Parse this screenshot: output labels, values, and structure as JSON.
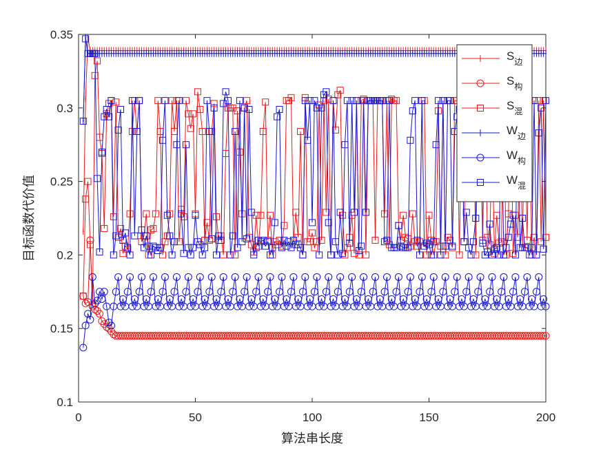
{
  "chart_data": {
    "type": "line",
    "title": "",
    "xlabel": "算法串长度",
    "ylabel": "目标函数代价值",
    "xlim": [
      0,
      200
    ],
    "ylim": [
      0.1,
      0.35
    ],
    "x_ticks": [
      0,
      50,
      100,
      150,
      200
    ],
    "y_ticks": [
      0.1,
      0.15,
      0.2,
      0.25,
      0.3,
      0.35
    ],
    "x_tick_labels": [
      "0",
      "50",
      "100",
      "150",
      "200"
    ],
    "y_tick_labels": [
      "0.1",
      "0.15",
      "0.2",
      "0.25",
      "0.3",
      "0.35"
    ],
    "grid": false,
    "legend_position": "top-right",
    "x_range": [
      2,
      200
    ],
    "series": [
      {
        "name": "S",
        "name_sub": "边",
        "color": "#e8191c",
        "marker": "plus",
        "init": [
          0.216,
          0.306,
          0.348,
          0.339
        ],
        "steady": 0.339
      },
      {
        "name": "S",
        "name_sub": "构",
        "color": "#e8191c",
        "marker": "circle",
        "init": [
          0.172,
          0.167,
          0.168,
          0.21,
          0.165,
          0.163,
          0.162,
          0.16,
          0.155,
          0.153,
          0.151,
          0.15,
          0.148,
          0.146
        ],
        "steady": 0.145
      },
      {
        "name": "S",
        "name_sub": "混",
        "color": "#e8191c",
        "marker": "square",
        "init": [
          0.172,
          0.238,
          0.25,
          0.207,
          0.166,
          0.322,
          0.332,
          0.28,
          0.269,
          0.218
        ],
        "values": [
          0.296,
          0.303,
          0.305,
          0.226,
          0.304,
          0.212,
          0.218,
          0.201,
          0.206,
          0.204,
          0.228,
          0.284,
          0.305,
          0.284,
          0.305,
          0.209,
          0.213,
          0.228,
          0.2,
          0.217,
          0.218,
          0.228,
          0.305,
          0.284,
          0.2,
          0.209,
          0.213,
          0.228,
          0.305,
          0.284,
          0.305,
          0.209,
          0.231,
          0.226,
          0.305,
          0.296,
          0.286,
          0.296,
          0.228,
          0.311,
          0.299,
          0.284,
          0.21,
          0.222,
          0.21,
          0.284,
          0.303,
          0.226,
          0.21,
          0.213,
          0.2,
          0.269,
          0.3,
          0.3,
          0.3,
          0.2,
          0.298,
          0.27,
          0.228,
          0.3,
          0.305,
          0.212,
          0.207,
          0.202,
          0.227,
          0.206,
          0.227,
          0.284,
          0.304,
          0.21,
          0.227,
          0.2,
          0.209,
          0.207,
          0.21,
          0.206,
          0.22,
          0.305,
          0.305,
          0.307,
          0.21,
          0.229,
          0.212,
          0.284,
          0.2,
          0.307,
          0.209,
          0.209,
          0.215,
          0.205,
          0.209,
          0.302,
          0.21,
          0.305,
          0.229,
          0.306,
          0.2,
          0.305,
          0.285,
          0.309,
          0.312,
          0.227,
          0.2,
          0.205,
          0.212,
          0.227,
          0.201,
          0.305,
          0.2,
          0.305,
          0.306,
          0.2,
          0.305,
          0.305,
          0.305,
          0.21,
          0.305,
          0.305,
          0.305,
          0.228,
          0.305,
          0.207,
          0.306,
          0.305,
          0.305,
          0.22,
          0.21,
          0.227,
          0.212,
          0.211,
          0.206,
          0.228,
          0.209,
          0.206,
          0.209,
          0.305,
          0.305,
          0.2,
          0.227,
          0.21,
          0.2,
          0.209,
          0.298,
          0.206,
          0.305,
          0.2,
          0.212,
          0.21,
          0.205,
          0.305,
          0.305,
          0.2,
          0.305,
          0.209,
          0.305,
          0.31,
          0.311,
          0.305,
          0.2,
          0.305,
          0.306,
          0.21,
          0.305,
          0.212,
          0.207,
          0.284,
          0.201,
          0.227,
          0.208,
          0.209,
          0.305,
          0.2,
          0.228,
          0.305,
          0.201,
          0.227,
          0.212,
          0.305,
          0.205,
          0.305,
          0.21,
          0.305,
          0.2,
          0.212,
          0.2,
          0.305,
          0.209,
          0.305,
          0.212,
          0.2,
          0.2
        ]
      },
      {
        "name": "W",
        "name_sub": "边",
        "color": "#1414d2",
        "marker": "plus",
        "init": [
          0.291,
          0.348,
          0.337
        ],
        "steady": 0.337
      },
      {
        "name": "W",
        "name_sub": "构",
        "color": "#1414d2",
        "marker": "circle",
        "init": [
          0.137,
          0.152,
          0.16,
          0.156,
          0.185,
          0.167,
          0.169,
          0.175,
          0.17,
          0.175,
          0.165,
          0.154,
          0.152
        ],
        "pattern": [
          0.165,
          0.175,
          0.185,
          0.165,
          0.17
        ],
        "pattern_start": 15,
        "last": 0.165
      },
      {
        "name": "W",
        "name_sub": "混",
        "color": "#1414d2",
        "marker": "square",
        "init": [
          0.291,
          0.347,
          0.337,
          0.337,
          0.337,
          0.337,
          0.252,
          0.202,
          0.27,
          0.294
        ],
        "values": [
          0.299,
          0.294,
          0.305,
          0.2,
          0.213,
          0.285,
          0.299,
          0.21,
          0.215,
          0.205,
          0.2,
          0.305,
          0.213,
          0.284,
          0.305,
          0.217,
          0.205,
          0.213,
          0.206,
          0.2,
          0.206,
          0.205,
          0.203,
          0.205,
          0.278,
          0.305,
          0.227,
          0.213,
          0.2,
          0.209,
          0.275,
          0.305,
          0.228,
          0.201,
          0.275,
          0.205,
          0.2,
          0.205,
          0.227,
          0.209,
          0.207,
          0.2,
          0.205,
          0.305,
          0.284,
          0.211,
          0.3,
          0.2,
          0.213,
          0.21,
          0.303,
          0.311,
          0.305,
          0.2,
          0.213,
          0.284,
          0.205,
          0.305,
          0.209,
          0.3,
          0.211,
          0.299,
          0.229,
          0.2,
          0.205,
          0.21,
          0.209,
          0.21,
          0.206,
          0.209,
          0.2,
          0.205,
          0.222,
          0.294,
          0.299,
          0.205,
          0.21,
          0.206,
          0.209,
          0.205,
          0.21,
          0.207,
          0.207,
          0.205,
          0.2,
          0.305,
          0.278,
          0.305,
          0.222,
          0.305,
          0.3,
          0.2,
          0.3,
          0.309,
          0.311,
          0.222,
          0.2,
          0.305,
          0.209,
          0.2,
          0.229,
          0.201,
          0.275,
          0.305,
          0.208,
          0.305,
          0.229,
          0.305,
          0.203,
          0.206,
          0.305,
          0.229,
          0.305,
          0.305,
          0.305,
          0.305,
          0.305,
          0.305,
          0.305,
          0.209,
          0.21,
          0.305,
          0.205,
          0.205,
          0.205,
          0.22,
          0.206,
          0.205,
          0.205,
          0.205,
          0.278,
          0.298,
          0.305,
          0.21,
          0.2,
          0.305,
          0.206,
          0.208,
          0.207,
          0.2,
          0.209,
          0.275,
          0.305,
          0.2,
          0.305,
          0.206,
          0.305,
          0.305,
          0.206,
          0.284,
          0.294,
          0.299,
          0.305,
          0.209,
          0.229,
          0.205,
          0.2,
          0.209,
          0.225,
          0.305,
          0.305,
          0.208,
          0.2,
          0.202,
          0.221,
          0.2,
          0.204,
          0.205,
          0.2,
          0.305,
          0.2,
          0.205,
          0.212,
          0.221,
          0.227,
          0.2,
          0.305,
          0.205,
          0.225,
          0.205,
          0.205,
          0.2,
          0.205,
          0.305,
          0.2,
          0.283,
          0.3,
          0.204,
          0.305,
          0.305
        ]
      }
    ]
  }
}
